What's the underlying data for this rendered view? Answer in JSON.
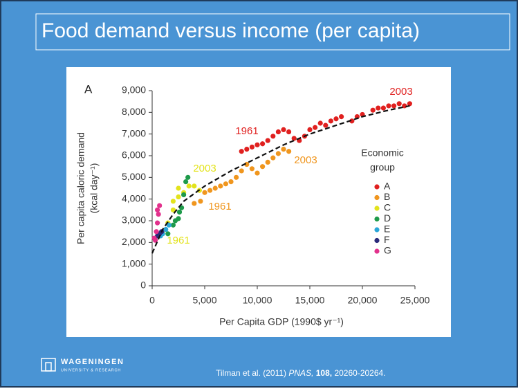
{
  "slide": {
    "title": "Food demand versus income (per capita)",
    "logo": {
      "name": "WAGENINGEN",
      "subtitle": "UNIVERSITY & RESEARCH"
    },
    "citation": {
      "authors": "Tilman et al. (2011)",
      "journal": "PNAS,",
      "volume": "108,",
      "pages": "20260-20264."
    }
  },
  "chart_data": {
    "type": "scatter",
    "panel": "A",
    "xlabel": "Per Capita GDP (1990$ yr⁻¹)",
    "ylabel": [
      "Per capita caloric demand",
      "(kcal day⁻¹)"
    ],
    "xlim": [
      0,
      25000
    ],
    "ylim": [
      0,
      9000
    ],
    "xticks": [
      0,
      {
        "value": 5000,
        "label": "5,000"
      },
      {
        "value": 10000,
        "label": "10,000"
      },
      {
        "value": 15000,
        "label": "15,000"
      },
      {
        "value": 20000,
        "label": "20,000"
      },
      {
        "value": 25000,
        "label": "25,000"
      }
    ],
    "yticks": [
      0,
      {
        "value": 1000,
        "label": "1,000"
      },
      {
        "value": 2000,
        "label": "2,000"
      },
      {
        "value": 3000,
        "label": "3,000"
      },
      {
        "value": 4000,
        "label": "4,000"
      },
      {
        "value": 5000,
        "label": "5,000"
      },
      {
        "value": 6000,
        "label": "6,000"
      },
      {
        "value": 7000,
        "label": "7,000"
      },
      {
        "value": 8000,
        "label": "8,000"
      },
      {
        "value": 9000,
        "label": "9,000"
      }
    ],
    "legend_title": [
      "Economic",
      "group"
    ],
    "legend": "right",
    "series": [
      {
        "name": "A",
        "color": "#e0201f",
        "x": [
          8500,
          9000,
          9500,
          10000,
          10500,
          11000,
          11500,
          12000,
          12500,
          13000,
          13500,
          14000,
          14500,
          15000,
          15500,
          16000,
          16500,
          17000,
          17500,
          18000,
          19000,
          19500,
          20000,
          21000,
          21500,
          22000,
          22500,
          23000,
          23500,
          24000,
          24500
        ],
        "values": [
          6200,
          6300,
          6400,
          6500,
          6550,
          6700,
          6900,
          7100,
          7200,
          7100,
          6800,
          6700,
          6900,
          7200,
          7300,
          7500,
          7400,
          7600,
          7700,
          7800,
          7600,
          7800,
          7900,
          8100,
          8200,
          8200,
          8300,
          8300,
          8400,
          8300,
          8400
        ]
      },
      {
        "name": "B",
        "color": "#f0961e",
        "x": [
          4000,
          4600,
          5000,
          5500,
          6000,
          6500,
          7000,
          7500,
          8000,
          8500,
          9000,
          9500,
          10000,
          10500,
          11000,
          11500,
          12000,
          12500,
          13000
        ],
        "values": [
          3800,
          3900,
          4300,
          4400,
          4500,
          4600,
          4700,
          4800,
          5000,
          5300,
          5600,
          5400,
          5200,
          5500,
          5700,
          5900,
          6100,
          6300,
          6200
        ]
      },
      {
        "name": "C",
        "color": "#e3e31c",
        "x": [
          1000,
          1500,
          2000,
          2000,
          2500,
          2500,
          3000,
          3500,
          4000,
          4500
        ],
        "values": [
          2500,
          2900,
          3500,
          3900,
          4100,
          4500,
          4300,
          4600,
          4600,
          4400
        ]
      },
      {
        "name": "D",
        "color": "#1e9a4a",
        "x": [
          1500,
          2000,
          2200,
          2500,
          2600,
          2800,
          3000,
          3200,
          3400
        ],
        "values": [
          2400,
          2800,
          3000,
          3100,
          3400,
          3600,
          4200,
          4800,
          5000
        ]
      },
      {
        "name": "E",
        "color": "#2aa6d8",
        "x": [
          800,
          1000,
          1300,
          1600
        ],
        "values": [
          2300,
          2400,
          2600,
          2800
        ]
      },
      {
        "name": "F",
        "color": "#2a2a7a",
        "x": [
          500,
          700,
          900
        ],
        "values": [
          2300,
          2400,
          2500
        ]
      },
      {
        "name": "G",
        "color": "#e2318c",
        "x": [
          200,
          300,
          400,
          500,
          500,
          600,
          700
        ],
        "values": [
          2200,
          2100,
          2500,
          2900,
          3500,
          3300,
          3700
        ]
      }
    ],
    "trend_line": {
      "x": [
        0,
        1000,
        2000,
        3000,
        5000,
        7500,
        10000,
        12500,
        15000,
        17500,
        20000,
        22500,
        24500
      ],
      "values": [
        1500,
        2600,
        3300,
        3900,
        4600,
        5300,
        5900,
        6500,
        7000,
        7400,
        7800,
        8100,
        8300
      ]
    },
    "annotations": [
      {
        "text": "1961",
        "color": "#e0201f"
      },
      {
        "text": "2003",
        "color": "#e0201f"
      },
      {
        "text": "1961",
        "color": "#f0961e"
      },
      {
        "text": "2003",
        "color": "#f0961e"
      },
      {
        "text": "1961",
        "color": "#e3e31c"
      },
      {
        "text": "2003",
        "color": "#e3e31c"
      }
    ]
  }
}
